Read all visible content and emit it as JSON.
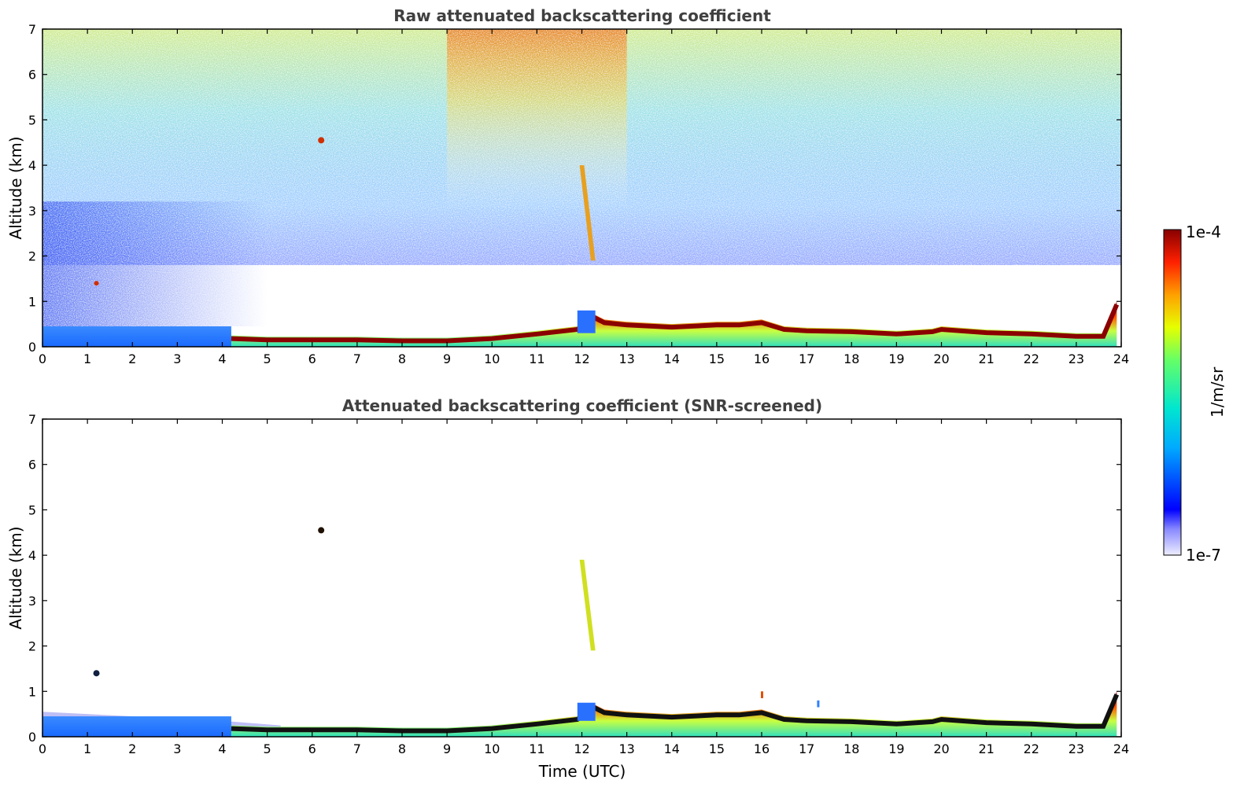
{
  "chart_data": [
    {
      "type": "heatmap",
      "title": "Raw attenuated backscattering coefficient",
      "xlabel": "",
      "ylabel": "Altitude (km)",
      "xlim": [
        0,
        24
      ],
      "ylim": [
        0,
        7
      ],
      "xticks": [
        "0",
        "1",
        "2",
        "3",
        "4",
        "5",
        "6",
        "7",
        "8",
        "9",
        "10",
        "11",
        "12",
        "13",
        "14",
        "15",
        "16",
        "17",
        "18",
        "19",
        "20",
        "21",
        "22",
        "23",
        "24"
      ],
      "yticks": [
        "0",
        "1",
        "2",
        "3",
        "4",
        "5",
        "6",
        "7"
      ],
      "grid": false,
      "boundary_layer_top_km": [
        [
          0,
          0.45
        ],
        [
          1,
          0.4
        ],
        [
          2,
          0.35
        ],
        [
          3,
          0.3
        ],
        [
          4,
          0.28
        ],
        [
          4.2,
          0.25
        ],
        [
          5,
          0.22
        ],
        [
          6,
          0.22
        ],
        [
          7,
          0.22
        ],
        [
          8,
          0.2
        ],
        [
          9,
          0.2
        ],
        [
          10,
          0.25
        ],
        [
          11,
          0.35
        ],
        [
          11.9,
          0.45
        ],
        [
          12.3,
          0.7
        ],
        [
          12.5,
          0.6
        ],
        [
          13,
          0.55
        ],
        [
          14,
          0.5
        ],
        [
          15,
          0.55
        ],
        [
          15.5,
          0.55
        ],
        [
          16,
          0.6
        ],
        [
          16.5,
          0.45
        ],
        [
          17,
          0.42
        ],
        [
          18,
          0.4
        ],
        [
          19,
          0.35
        ],
        [
          19.8,
          0.4
        ],
        [
          20,
          0.45
        ],
        [
          21,
          0.38
        ],
        [
          22,
          0.35
        ],
        [
          23,
          0.3
        ],
        [
          23.6,
          0.3
        ],
        [
          23.9,
          1.0
        ]
      ],
      "features": [
        {
          "name": "aerosol-layer",
          "t_start": 0,
          "t_end": 4.2,
          "z_bottom": 0,
          "z_top": 0.45,
          "level": "low"
        },
        {
          "name": "elevated-layer",
          "t": 6.2,
          "z": 4.55,
          "level": "high"
        },
        {
          "name": "elevated-layer",
          "t": 1.2,
          "z": 1.4,
          "level": "high"
        },
        {
          "name": "virga-plume",
          "t_start": 11.9,
          "t_end": 12.3,
          "z_bottom": 1.9,
          "z_top": 4.0,
          "level": "high"
        },
        {
          "name": "noise-region",
          "t_start": 10,
          "t_end": 13,
          "z_bottom": 3,
          "z_top": 7,
          "level": "mid-high"
        }
      ]
    },
    {
      "type": "heatmap",
      "title": "Attenuated backscattering coefficient (SNR-screened)",
      "xlabel": "Time (UTC)",
      "ylabel": "Altitude (km)",
      "xlim": [
        0,
        24
      ],
      "ylim": [
        0,
        7
      ],
      "xticks": [
        "0",
        "1",
        "2",
        "3",
        "4",
        "5",
        "6",
        "7",
        "8",
        "9",
        "10",
        "11",
        "12",
        "13",
        "14",
        "15",
        "16",
        "17",
        "18",
        "19",
        "20",
        "21",
        "22",
        "23",
        "24"
      ],
      "yticks": [
        "0",
        "1",
        "2",
        "3",
        "4",
        "5",
        "6",
        "7"
      ],
      "grid": false,
      "features": [
        {
          "name": "elevated-layer",
          "t": 6.2,
          "z": 4.55,
          "level": "high"
        },
        {
          "name": "elevated-layer",
          "t": 1.2,
          "z": 1.4,
          "level": "high"
        },
        {
          "name": "virga-plume",
          "t_start": 11.9,
          "t_end": 12.3,
          "z_bottom": 1.9,
          "z_top": 3.9,
          "level": "mid-high"
        },
        {
          "name": "small-feature",
          "t": 16.0,
          "z": 0.95,
          "level": "high"
        },
        {
          "name": "small-feature",
          "t": 17.25,
          "z": 0.75,
          "level": "mid"
        }
      ]
    }
  ],
  "colorbar": {
    "label": "1/m/sr",
    "top_label": "1e-4",
    "bottom_label": "1e-7",
    "colormap": "jet",
    "scale": "log",
    "range": [
      1e-07,
      0.0001
    ]
  }
}
